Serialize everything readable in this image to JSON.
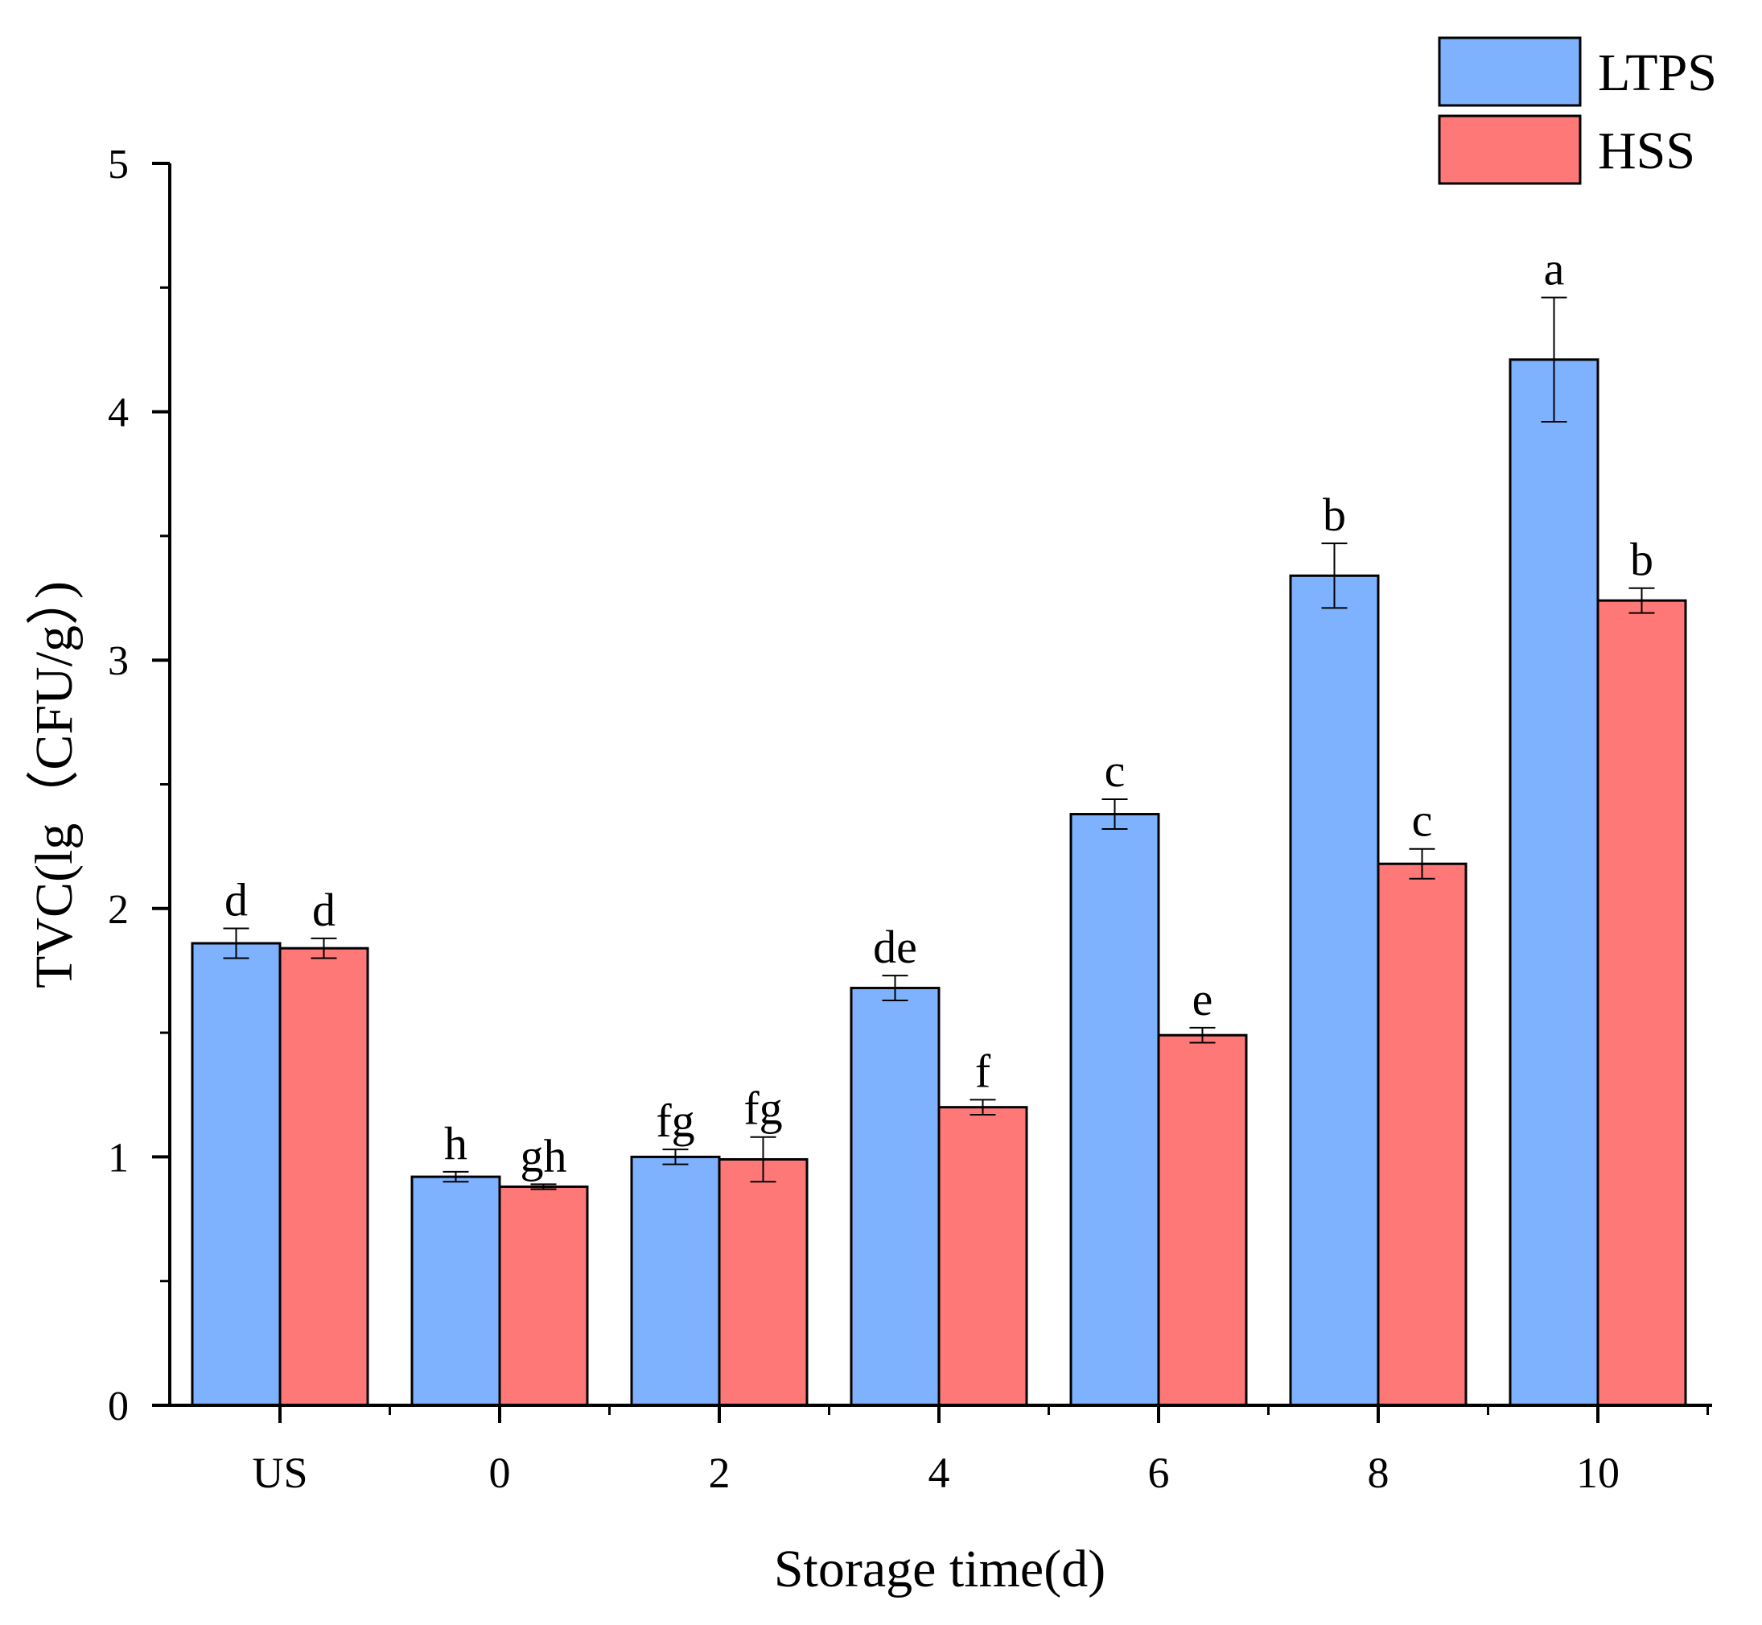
{
  "chart_data": {
    "type": "bar",
    "xlabel": "Storage time(d)",
    "ylabel": "TVC(lg（CFU/g）)",
    "ylim": [
      0,
      5
    ],
    "yticks": [
      "0",
      "1",
      "2",
      "3",
      "4",
      "5"
    ],
    "categories": [
      "US",
      "0",
      "2",
      "4",
      "6",
      "8",
      "10"
    ],
    "legend_position": "top-right",
    "series": [
      {
        "name": "LTPS",
        "color": "#7eb2ff",
        "values": [
          1.86,
          0.92,
          1.0,
          1.68,
          2.38,
          3.34,
          4.21
        ],
        "errors": [
          0.06,
          0.02,
          0.03,
          0.05,
          0.06,
          0.13,
          0.25
        ],
        "letters": [
          "d",
          "h",
          "fg",
          "de",
          "c",
          "b",
          "a"
        ]
      },
      {
        "name": "HSS",
        "color": "#ff7878",
        "values": [
          1.84,
          0.88,
          0.99,
          1.2,
          1.49,
          2.18,
          3.24
        ],
        "errors": [
          0.04,
          0.01,
          0.09,
          0.03,
          0.03,
          0.06,
          0.05
        ],
        "letters": [
          "d",
          "gh",
          "fg",
          "f",
          "e",
          "c",
          "b"
        ]
      }
    ]
  }
}
